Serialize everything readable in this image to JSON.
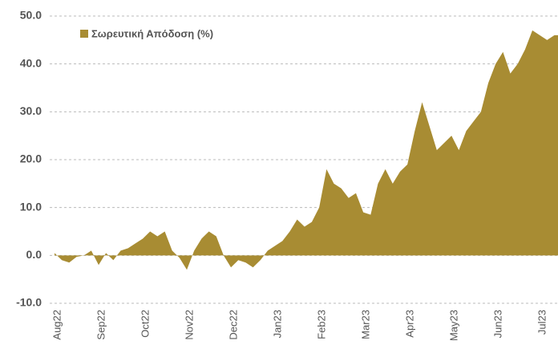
{
  "chart_data": {
    "type": "area",
    "categories": [
      "Aug22",
      null,
      null,
      null,
      null,
      null,
      "Sep22",
      null,
      null,
      null,
      null,
      null,
      "Oct22",
      null,
      null,
      null,
      null,
      null,
      "Nov22",
      null,
      null,
      null,
      null,
      null,
      "Dec22",
      null,
      null,
      null,
      null,
      null,
      "Jan23",
      null,
      null,
      null,
      null,
      null,
      "Feb23",
      null,
      null,
      null,
      null,
      null,
      "Mar23",
      null,
      null,
      null,
      null,
      null,
      "Apr23",
      null,
      null,
      null,
      null,
      null,
      "May23",
      null,
      null,
      null,
      null,
      null,
      "Jun23",
      null,
      null,
      null,
      null,
      null,
      "Jul23",
      null,
      null,
      null
    ],
    "series": [
      {
        "name": "Σωρευτική Απόδοση (%)",
        "color": "#a88c33",
        "values": [
          0.5,
          -1,
          -1.5,
          -0.3,
          0,
          1,
          -2,
          0.5,
          -1,
          1,
          1.5,
          2.5,
          3.5,
          5,
          4,
          5,
          1,
          -0.5,
          -3,
          1,
          3.5,
          5,
          4,
          0,
          -2.5,
          -1,
          -1.5,
          -2.5,
          -1,
          1,
          2,
          3,
          5,
          7.5,
          6,
          7,
          10,
          18,
          15,
          14,
          12,
          13,
          9,
          8.5,
          15,
          18,
          15,
          17.5,
          19,
          26,
          32,
          27,
          22,
          23.5,
          25,
          22,
          26,
          28,
          30,
          36,
          40,
          42.5,
          38,
          40,
          43,
          47,
          46,
          45,
          46,
          46
        ]
      }
    ],
    "ylim": [
      -10,
      50
    ],
    "yticks": [
      {
        "value": -10,
        "label": "-10.0"
      },
      {
        "value": 0,
        "label": "0.0"
      },
      {
        "value": 10,
        "label": "10.0"
      },
      {
        "value": 20,
        "label": "20.0"
      },
      {
        "value": 30,
        "label": "30.0"
      },
      {
        "value": 40,
        "label": "40.0"
      },
      {
        "value": 50,
        "label": "50.0"
      }
    ],
    "grid": true,
    "legend": "top-left"
  }
}
